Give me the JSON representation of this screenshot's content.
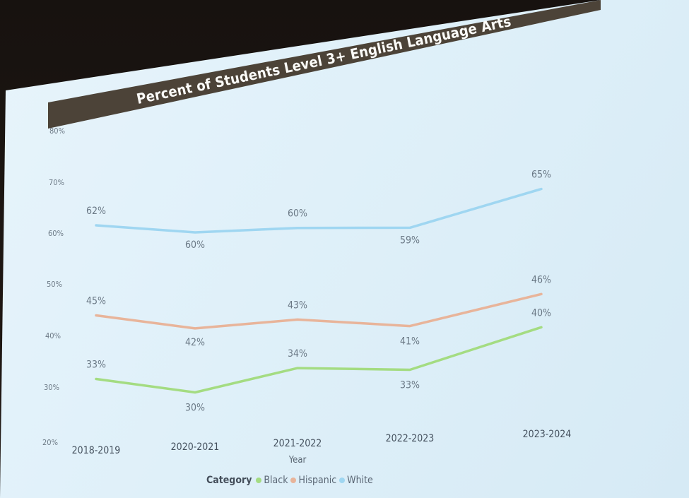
{
  "chart_data": {
    "type": "line",
    "title": "Percent of Students Level 3+ English Language Arts",
    "xlabel": "Year",
    "ylabel": "",
    "categories": [
      "2018-2019",
      "2020-2021",
      "2021-2022",
      "2022-2023",
      "2023-2024"
    ],
    "y_ticks": [
      "20%",
      "30%",
      "40%",
      "50%",
      "60%",
      "70%",
      "80%"
    ],
    "ylim": [
      20,
      80
    ],
    "series": [
      {
        "name": "Black",
        "color": "#a4dc82",
        "values": [
          33,
          30,
          34,
          33,
          40
        ],
        "labels": [
          "33%",
          "30%",
          "34%",
          "33%",
          "40%"
        ]
      },
      {
        "name": "Hispanic",
        "color": "#e8b49a",
        "values": [
          45,
          42,
          43,
          41,
          46
        ],
        "labels": [
          "45%",
          "42%",
          "43%",
          "41%",
          "46%"
        ]
      },
      {
        "name": "White",
        "color": "#9fd6f1",
        "values": [
          62,
          60,
          60,
          59,
          65
        ],
        "labels": [
          "62%",
          "60%",
          "60%",
          "59%",
          "65%"
        ]
      }
    ],
    "legend": {
      "title": "Category",
      "placement": "bottom"
    },
    "grid": false
  }
}
